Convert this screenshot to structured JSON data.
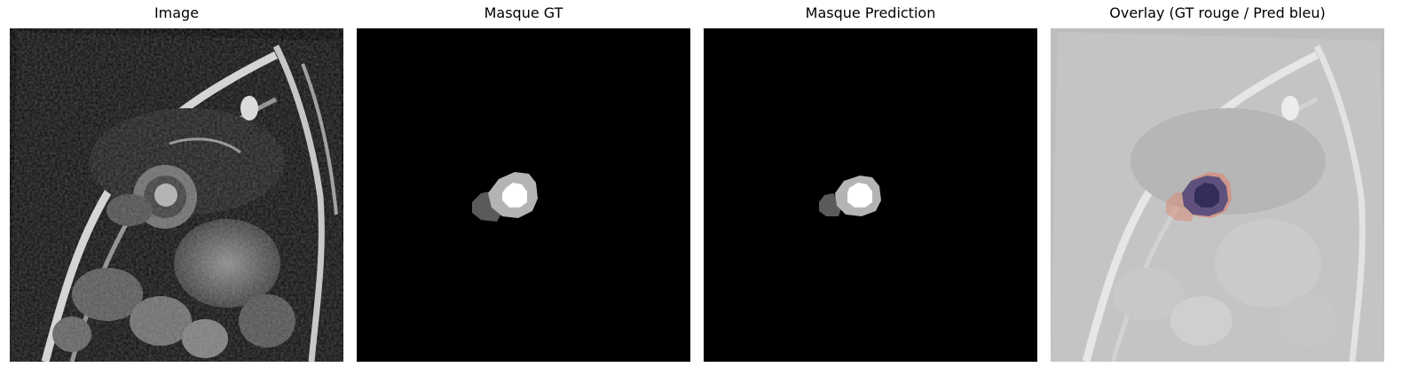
{
  "panels": [
    {
      "title": "Image"
    },
    {
      "title": "Masque GT"
    },
    {
      "title": "Masque Prediction"
    },
    {
      "title": "Overlay (GT rouge / Pred bleu)"
    }
  ],
  "colors": {
    "background": "#ffffff",
    "mask_background": "#000000",
    "mask_class_1": "#5a5a5a",
    "mask_class_2": "#b4b4b4",
    "mask_class_3": "#ffffff",
    "overlay_gt": "#e0826a",
    "overlay_pred": "#3a3a7a"
  }
}
